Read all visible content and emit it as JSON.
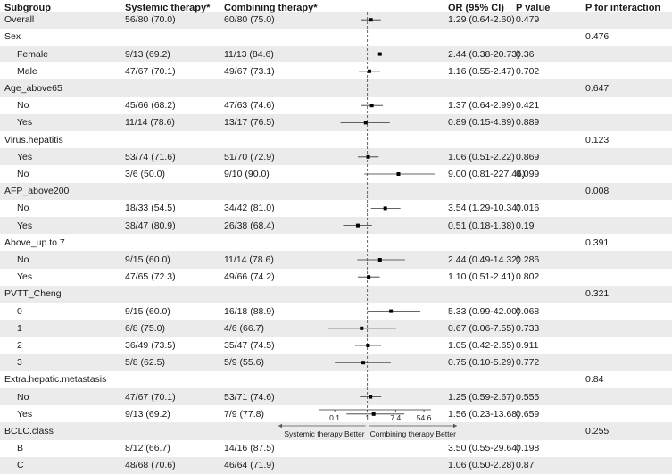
{
  "headers": {
    "subgroup": "Subgroup",
    "systemic": "Systemic therapy*",
    "combining": "Combining therapy*",
    "or": "OR (95% CI)",
    "p": "P value",
    "pint": "P for interaction"
  },
  "rows": [
    {
      "label": "Overall",
      "indent": false,
      "sys": "56/80 (70.0)",
      "comb": "60/80 (75.0)",
      "or_text": "1.29 (0.64-2.60)",
      "p": "0.479",
      "pint": "",
      "or": 1.29,
      "lo": 0.64,
      "hi": 2.6
    },
    {
      "label": "Sex",
      "indent": false,
      "sys": "",
      "comb": "",
      "or_text": "",
      "p": "",
      "pint": "0.476"
    },
    {
      "label": "Female",
      "indent": true,
      "sys": "9/13 (69.2)",
      "comb": "11/13 (84.6)",
      "or_text": "2.44 (0.38-20.73)",
      "p": "0.36",
      "pint": "",
      "or": 2.44,
      "lo": 0.38,
      "hi": 20.73
    },
    {
      "label": "Male",
      "indent": true,
      "sys": "47/67 (70.1)",
      "comb": "49/67 (73.1)",
      "or_text": "1.16 (0.55-2.47)",
      "p": "0.702",
      "pint": "",
      "or": 1.16,
      "lo": 0.55,
      "hi": 2.47
    },
    {
      "label": "Age_above65",
      "indent": false,
      "sys": "",
      "comb": "",
      "or_text": "",
      "p": "",
      "pint": "0.647"
    },
    {
      "label": "No",
      "indent": true,
      "sys": "45/66 (68.2)",
      "comb": "47/63 (74.6)",
      "or_text": "1.37 (0.64-2.99)",
      "p": "0.421",
      "pint": "",
      "or": 1.37,
      "lo": 0.64,
      "hi": 2.99
    },
    {
      "label": "Yes",
      "indent": true,
      "sys": "11/14 (78.6)",
      "comb": "13/17 (76.5)",
      "or_text": "0.89 (0.15-4.89)",
      "p": "0.889",
      "pint": "",
      "or": 0.89,
      "lo": 0.15,
      "hi": 4.89
    },
    {
      "label": "Virus.hepatitis",
      "indent": false,
      "sys": "",
      "comb": "",
      "or_text": "",
      "p": "",
      "pint": "0.123"
    },
    {
      "label": "Yes",
      "indent": true,
      "sys": "53/74 (71.6)",
      "comb": "51/70 (72.9)",
      "or_text": "1.06 (0.51-2.22)",
      "p": "0.869",
      "pint": "",
      "or": 1.06,
      "lo": 0.51,
      "hi": 2.22
    },
    {
      "label": "No",
      "indent": true,
      "sys": "3/6 (50.0)",
      "comb": "9/10 (90.0)",
      "or_text": "9.00 (0.81-227.46)",
      "p": "0.099",
      "pint": "",
      "or": 9.0,
      "lo": 0.81,
      "hi": 227.46
    },
    {
      "label": "AFP_above200",
      "indent": false,
      "sys": "",
      "comb": "",
      "or_text": "",
      "p": "",
      "pint": "0.008"
    },
    {
      "label": "No",
      "indent": true,
      "sys": "18/33 (54.5)",
      "comb": "34/42 (81.0)",
      "or_text": "3.54 (1.29-10.34)",
      "p": "0.016",
      "pint": "",
      "or": 3.54,
      "lo": 1.29,
      "hi": 10.34
    },
    {
      "label": "Yes",
      "indent": true,
      "sys": "38/47 (80.9)",
      "comb": "26/38 (68.4)",
      "or_text": "0.51 (0.18-1.38)",
      "p": "0.19",
      "pint": "",
      "or": 0.51,
      "lo": 0.18,
      "hi": 1.38
    },
    {
      "label": "Above_up.to.7",
      "indent": false,
      "sys": "",
      "comb": "",
      "or_text": "",
      "p": "",
      "pint": "0.391"
    },
    {
      "label": "No",
      "indent": true,
      "sys": "9/15 (60.0)",
      "comb": "11/14 (78.6)",
      "or_text": "2.44 (0.49-14.32)",
      "p": "0.286",
      "pint": "",
      "or": 2.44,
      "lo": 0.49,
      "hi": 14.32
    },
    {
      "label": "Yes",
      "indent": true,
      "sys": "47/65 (72.3)",
      "comb": "49/66 (74.2)",
      "or_text": "1.10 (0.51-2.41)",
      "p": "0.802",
      "pint": "",
      "or": 1.1,
      "lo": 0.51,
      "hi": 2.41
    },
    {
      "label": "PVTT_Cheng",
      "indent": false,
      "sys": "",
      "comb": "",
      "or_text": "",
      "p": "",
      "pint": "0.321"
    },
    {
      "label": "0",
      "indent": true,
      "sys": "9/15 (60.0)",
      "comb": "16/18 (88.9)",
      "or_text": "5.33 (0.99-42.00)",
      "p": "0.068",
      "pint": "",
      "or": 5.33,
      "lo": 0.99,
      "hi": 42.0
    },
    {
      "label": "1",
      "indent": true,
      "sys": "6/8 (75.0)",
      "comb": "4/6 (66.7)",
      "or_text": "0.67 (0.06-7.55)",
      "p": "0.733",
      "pint": "",
      "or": 0.67,
      "lo": 0.06,
      "hi": 7.55
    },
    {
      "label": "2",
      "indent": true,
      "sys": "36/49 (73.5)",
      "comb": "35/47 (74.5)",
      "or_text": "1.05 (0.42-2.65)",
      "p": "0.911",
      "pint": "",
      "or": 1.05,
      "lo": 0.42,
      "hi": 2.65
    },
    {
      "label": "3",
      "indent": true,
      "sys": "5/8 (62.5)",
      "comb": "5/9 (55.6)",
      "or_text": "0.75 (0.10-5.29)",
      "p": "0.772",
      "pint": "",
      "or": 0.75,
      "lo": 0.1,
      "hi": 5.29
    },
    {
      "label": "Extra.hepatic.metastasis",
      "indent": false,
      "sys": "",
      "comb": "",
      "or_text": "",
      "p": "",
      "pint": "0.84"
    },
    {
      "label": "No",
      "indent": true,
      "sys": "47/67 (70.1)",
      "comb": "53/71 (74.6)",
      "or_text": "1.25 (0.59-2.67)",
      "p": "0.555",
      "pint": "",
      "or": 1.25,
      "lo": 0.59,
      "hi": 2.67
    },
    {
      "label": "Yes",
      "indent": true,
      "sys": "9/13 (69.2)",
      "comb": "7/9 (77.8)",
      "or_text": "1.56 (0.23-13.68)",
      "p": "0.659",
      "pint": "",
      "or": 1.56,
      "lo": 0.23,
      "hi": 13.68
    },
    {
      "label": "BCLC.class",
      "indent": false,
      "sys": "",
      "comb": "",
      "or_text": "",
      "p": "",
      "pint": "0.255"
    },
    {
      "label": "B",
      "indent": true,
      "sys": "8/12 (66.7)",
      "comb": "14/16 (87.5)",
      "or_text": "3.50 (0.55-29.64)",
      "p": "0.198",
      "pint": "",
      "or": 3.5,
      "lo": 0.55,
      "hi": 29.64
    },
    {
      "label": "C",
      "indent": true,
      "sys": "48/68 (70.6)",
      "comb": "46/64 (71.9)",
      "or_text": "1.06 (0.50-2.28)",
      "p": "0.87",
      "pint": "",
      "or": 1.06,
      "lo": 0.5,
      "hi": 2.28
    }
  ],
  "axis": {
    "ticks": [
      0.1,
      1,
      7.4,
      54.6
    ],
    "tick_labels": [
      "0.1",
      "1",
      "7.4",
      "54.6"
    ],
    "ref": 1,
    "xlim": [
      0.03,
      90
    ],
    "scale": "log",
    "left_label": "Systemic therapy Better",
    "right_label": "Combining therapy Better"
  },
  "chart_data": {
    "type": "forest",
    "title": "",
    "xlabel": "",
    "ylabel": "Subgroup",
    "scale": "log",
    "reference_line": 1,
    "xlim": [
      0.03,
      90
    ],
    "ticks": [
      0.1,
      1,
      7.4,
      54.6
    ],
    "direction_labels": [
      "Systemic therapy Better",
      "Combining therapy Better"
    ],
    "estimates": [
      {
        "group": "Overall",
        "level": "",
        "or": 1.29,
        "lo": 0.64,
        "hi": 2.6
      },
      {
        "group": "Sex",
        "level": "Female",
        "or": 2.44,
        "lo": 0.38,
        "hi": 20.73
      },
      {
        "group": "Sex",
        "level": "Male",
        "or": 1.16,
        "lo": 0.55,
        "hi": 2.47
      },
      {
        "group": "Age_above65",
        "level": "No",
        "or": 1.37,
        "lo": 0.64,
        "hi": 2.99
      },
      {
        "group": "Age_above65",
        "level": "Yes",
        "or": 0.89,
        "lo": 0.15,
        "hi": 4.89
      },
      {
        "group": "Virus.hepatitis",
        "level": "Yes",
        "or": 1.06,
        "lo": 0.51,
        "hi": 2.22
      },
      {
        "group": "Virus.hepatitis",
        "level": "No",
        "or": 9.0,
        "lo": 0.81,
        "hi": 227.46
      },
      {
        "group": "AFP_above200",
        "level": "No",
        "or": 3.54,
        "lo": 1.29,
        "hi": 10.34
      },
      {
        "group": "AFP_above200",
        "level": "Yes",
        "or": 0.51,
        "lo": 0.18,
        "hi": 1.38
      },
      {
        "group": "Above_up.to.7",
        "level": "No",
        "or": 2.44,
        "lo": 0.49,
        "hi": 14.32
      },
      {
        "group": "Above_up.to.7",
        "level": "Yes",
        "or": 1.1,
        "lo": 0.51,
        "hi": 2.41
      },
      {
        "group": "PVTT_Cheng",
        "level": "0",
        "or": 5.33,
        "lo": 0.99,
        "hi": 42.0
      },
      {
        "group": "PVTT_Cheng",
        "level": "1",
        "or": 0.67,
        "lo": 0.06,
        "hi": 7.55
      },
      {
        "group": "PVTT_Cheng",
        "level": "2",
        "or": 1.05,
        "lo": 0.42,
        "hi": 2.65
      },
      {
        "group": "PVTT_Cheng",
        "level": "3",
        "or": 0.75,
        "lo": 0.1,
        "hi": 5.29
      },
      {
        "group": "Extra.hepatic.metastasis",
        "level": "No",
        "or": 1.25,
        "lo": 0.59,
        "hi": 2.67
      },
      {
        "group": "Extra.hepatic.metastasis",
        "level": "Yes",
        "or": 1.56,
        "lo": 0.23,
        "hi": 13.68
      },
      {
        "group": "BCLC.class",
        "level": "B",
        "or": 3.5,
        "lo": 0.55,
        "hi": 29.64
      },
      {
        "group": "BCLC.class",
        "level": "C",
        "or": 1.06,
        "lo": 0.5,
        "hi": 2.28
      }
    ]
  }
}
